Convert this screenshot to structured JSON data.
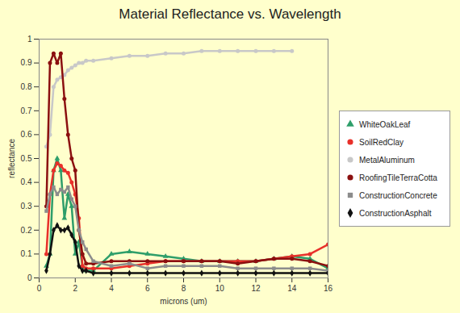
{
  "chart_data": {
    "type": "line",
    "title": "Material Reflectance vs. Wavelength",
    "x_label": "microns (um)",
    "y_label": "reflectance",
    "x": [
      0.4,
      0.6,
      0.8,
      1.0,
      1.2,
      1.4,
      1.6,
      1.8,
      2.0,
      2.2,
      2.4,
      2.6,
      3,
      4,
      5,
      6,
      7,
      8,
      9,
      10,
      11,
      12,
      13,
      14,
      15,
      16
    ],
    "series": [
      {
        "name": "WhiteOakLeaf",
        "color": "#2e9e6a",
        "marker": "triangle",
        "values": [
          0.05,
          0.1,
          0.45,
          0.5,
          0.45,
          0.25,
          0.35,
          0.3,
          0.1,
          0.15,
          0.05,
          0.03,
          0.03,
          0.1,
          0.11,
          0.1,
          0.09,
          0.08,
          0.07,
          0.07,
          0.07,
          0.07,
          0.08,
          0.09,
          0.08,
          0.04
        ]
      },
      {
        "name": "SoilRedClay",
        "color": "#e8302a",
        "marker": "circle",
        "values": [
          0.1,
          0.35,
          0.45,
          0.48,
          0.47,
          0.45,
          0.44,
          0.4,
          0.35,
          0.25,
          0.05,
          0.04,
          0.04,
          0.04,
          0.05,
          0.06,
          0.07,
          0.07,
          0.07,
          0.07,
          0.07,
          0.07,
          0.08,
          0.09,
          0.1,
          0.14
        ]
      },
      {
        "name": "MetalAluminum",
        "color": "#c8c8c8",
        "marker": "circle",
        "values": [
          0.55,
          0.6,
          0.8,
          0.83,
          0.84,
          0.85,
          0.87,
          0.88,
          0.89,
          0.9,
          0.9,
          0.91,
          0.91,
          0.92,
          0.93,
          0.93,
          0.94,
          0.94,
          0.95,
          0.95,
          0.95,
          0.95,
          0.95,
          0.95,
          null,
          null
        ]
      },
      {
        "name": "RoofingTileTerraCotta",
        "color": "#8b1010",
        "marker": "circle",
        "values": [
          0.3,
          0.9,
          0.94,
          0.9,
          0.94,
          0.75,
          0.6,
          0.5,
          0.45,
          0.2,
          0.1,
          0.06,
          0.06,
          0.07,
          0.07,
          0.07,
          0.07,
          0.07,
          0.07,
          0.07,
          0.06,
          0.07,
          0.08,
          0.08,
          0.07,
          0.05
        ]
      },
      {
        "name": "ConstructionConcrete",
        "color": "#8c8c8c",
        "marker": "square",
        "values": [
          0.28,
          0.35,
          0.38,
          0.35,
          0.37,
          0.36,
          0.38,
          0.33,
          0.3,
          0.2,
          0.15,
          0.12,
          0.07,
          0.05,
          0.06,
          0.04,
          0.05,
          0.05,
          0.05,
          0.05,
          0.04,
          0.04,
          0.04,
          0.04,
          0.04,
          0.03
        ]
      },
      {
        "name": "ConstructionAsphalt",
        "color": "#111111",
        "marker": "diamond",
        "values": [
          0.03,
          0.1,
          0.2,
          0.22,
          0.2,
          0.2,
          0.21,
          0.18,
          0.15,
          0.05,
          0.03,
          0.03,
          0.02,
          0.02,
          0.02,
          0.02,
          0.02,
          0.02,
          0.02,
          0.02,
          0.02,
          0.02,
          0.02,
          0.02,
          0.02,
          0.02
        ]
      }
    ],
    "xlim": [
      0,
      16
    ],
    "xticks": [
      0,
      2,
      4,
      6,
      8,
      10,
      12,
      14,
      16
    ],
    "ylim": [
      0,
      1
    ],
    "yticks": [
      0,
      0.1,
      0.2,
      0.3,
      0.4,
      0.5,
      0.6,
      0.7,
      0.8,
      0.9,
      1
    ],
    "grid": false,
    "legend": "right"
  }
}
